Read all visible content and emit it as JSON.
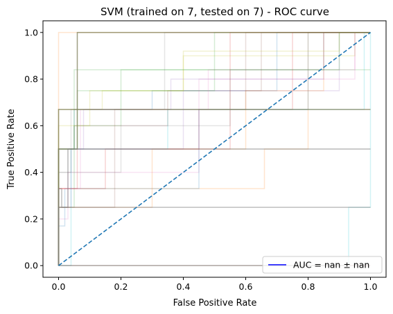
{
  "chart_data": {
    "type": "line",
    "title": "SVM (trained on 7, tested on 7) -  ROC curve",
    "xlabel": "False Positive Rate",
    "ylabel": "True Positive Rate",
    "xlim": [
      -0.05,
      1.05
    ],
    "ylim": [
      -0.05,
      1.05
    ],
    "xticks": [
      "0.0",
      "0.2",
      "0.4",
      "0.6",
      "0.8",
      "1.0"
    ],
    "yticks": [
      "0.0",
      "0.2",
      "0.4",
      "0.6",
      "0.8",
      "1.0"
    ],
    "grid": false,
    "legend": {
      "location": "lower-right",
      "entries": [
        {
          "label": "AUC = nan ± nan",
          "color": "#0000ff"
        }
      ]
    },
    "diagonal": {
      "x": [
        0,
        1
      ],
      "y": [
        0,
        1
      ],
      "color": "#1f77b4",
      "style": "dashed"
    },
    "fold_curves_opacity": 0.2,
    "fold_curves": [
      {
        "color": "#1f77b4",
        "x": [
          0,
          0,
          0.05,
          0.05,
          0.3,
          0.3,
          0.7,
          0.7,
          1
        ],
        "y": [
          0,
          0.5,
          0.5,
          0.67,
          0.67,
          0.75,
          0.75,
          1,
          1
        ]
      },
      {
        "color": "#ff7f0e",
        "x": [
          0,
          0,
          0.66,
          0.66,
          0.8,
          0.8,
          1
        ],
        "y": [
          0,
          0.33,
          0.33,
          0.5,
          0.5,
          1,
          1
        ]
      },
      {
        "color": "#2ca02c",
        "x": [
          0,
          0,
          0.05,
          0.05,
          0.2,
          0.2,
          1
        ],
        "y": [
          0,
          0.25,
          0.25,
          0.6,
          0.6,
          0.84,
          0.84
        ]
      },
      {
        "color": "#d62728",
        "x": [
          0,
          0,
          0.15,
          0.15,
          0.45,
          0.45,
          0.75,
          0.75,
          1
        ],
        "y": [
          0,
          0.33,
          0.33,
          0.5,
          0.5,
          0.67,
          0.67,
          1,
          1
        ]
      },
      {
        "color": "#9467bd",
        "x": [
          0,
          0,
          0.04,
          0.04,
          0.4,
          0.4,
          0.9,
          0.9,
          1
        ],
        "y": [
          0,
          0.25,
          0.25,
          0.5,
          0.5,
          0.75,
          0.75,
          1,
          1
        ]
      },
      {
        "color": "#8c564b",
        "x": [
          0,
          0,
          0.05,
          0.05,
          0.35,
          0.35,
          0.65,
          0.65,
          1
        ],
        "y": [
          0,
          0.5,
          0.5,
          0.6,
          0.6,
          0.75,
          0.75,
          1,
          1
        ]
      },
      {
        "color": "#e377c2",
        "x": [
          0,
          0,
          0.03,
          0.03,
          0.45,
          0.45,
          0.95,
          0.95,
          1
        ],
        "y": [
          0,
          0.2,
          0.2,
          0.4,
          0.4,
          0.8,
          0.8,
          1,
          1
        ]
      },
      {
        "color": "#7f7f7f",
        "x": [
          0,
          0,
          0.04,
          0.04,
          0.34,
          0.34,
          1
        ],
        "y": [
          0,
          0.4,
          0.4,
          0.67,
          0.67,
          1,
          1
        ]
      },
      {
        "color": "#bcbd22",
        "x": [
          0,
          0,
          0.14,
          0.14,
          0.4,
          0.4,
          0.95,
          0.95,
          1
        ],
        "y": [
          0,
          0.67,
          0.67,
          0.75,
          0.75,
          0.9,
          0.9,
          1,
          1
        ]
      },
      {
        "color": "#17becf",
        "x": [
          0,
          0,
          0.93,
          0.93,
          1,
          1
        ],
        "y": [
          0,
          0.0,
          0,
          0.25,
          0.25,
          1
        ]
      },
      {
        "color": "#1f77b4",
        "x": [
          0,
          0,
          0.02,
          0.02,
          0.45,
          0.45,
          0.8,
          0.8,
          1
        ],
        "y": [
          0,
          0.17,
          0.17,
          0.33,
          0.33,
          0.67,
          0.67,
          1,
          1
        ]
      },
      {
        "color": "#ff7f0e",
        "x": [
          0,
          0,
          0.3,
          0.3,
          0.6,
          0.6,
          0.85,
          0.85,
          1
        ],
        "y": [
          0,
          0.25,
          0.25,
          0.5,
          0.5,
          0.75,
          0.75,
          1,
          1
        ]
      },
      {
        "color": "#2ca02c",
        "x": [
          0,
          0,
          0.06,
          0.06,
          0.5,
          0.5,
          1
        ],
        "y": [
          0,
          0.5,
          0.5,
          0.75,
          0.75,
          1,
          1
        ]
      },
      {
        "color": "#d62728",
        "x": [
          0,
          0,
          0.06,
          0.06,
          0.55,
          0.55,
          1
        ],
        "y": [
          0,
          0.33,
          0.33,
          0.5,
          0.5,
          1,
          1
        ]
      },
      {
        "color": "#9467bd",
        "x": [
          0,
          0,
          0.08,
          0.08,
          0.36,
          0.36,
          0.85,
          0.85,
          1
        ],
        "y": [
          0,
          0.5,
          0.5,
          0.67,
          0.67,
          0.8,
          0.8,
          1,
          1
        ]
      },
      {
        "color": "#8c564b",
        "x": [
          0,
          0,
          0.18,
          0.18,
          0.6,
          0.6,
          1
        ],
        "y": [
          0,
          0.25,
          0.25,
          0.67,
          0.67,
          1,
          1
        ]
      },
      {
        "color": "#e377c2",
        "x": [
          0,
          0,
          0.07,
          0.07,
          0.48,
          0.48,
          0.95,
          0.95,
          1
        ],
        "y": [
          0,
          0.33,
          0.33,
          0.67,
          0.67,
          0.84,
          0.84,
          1,
          1
        ]
      },
      {
        "color": "#7f7f7f",
        "x": [
          0,
          0,
          0.2,
          0.2,
          0.55,
          0.55,
          0.85,
          0.85,
          1
        ],
        "y": [
          0,
          0.4,
          0.4,
          0.6,
          0.6,
          0.84,
          0.84,
          1,
          1
        ]
      },
      {
        "color": "#bcbd22",
        "x": [
          0,
          0,
          0.1,
          0.1,
          0.4,
          0.4,
          0.9,
          0.9,
          1
        ],
        "y": [
          0,
          0.6,
          0.6,
          0.75,
          0.75,
          0.92,
          0.92,
          1,
          1
        ]
      },
      {
        "color": "#17becf",
        "x": [
          0,
          0,
          0.04,
          0.04,
          0.35,
          0.35,
          0.98,
          0.98,
          1
        ],
        "y": [
          0,
          0.0,
          0.0,
          0.5,
          0.5,
          0.67,
          0.67,
          1,
          1
        ]
      },
      {
        "color": "#ff7f0e",
        "x": [
          0,
          0,
          0.0,
          0.0,
          0.05,
          0.05,
          1
        ],
        "y": [
          0,
          0.5,
          0.5,
          1,
          1,
          1,
          1
        ]
      },
      {
        "color": "#2ca02c",
        "x": [
          0,
          0,
          0.05,
          0.05,
          0.2,
          0.2,
          0.9,
          0.9,
          1
        ],
        "y": [
          0,
          0.5,
          0.5,
          0.84,
          0.84,
          0.84,
          0.84,
          1,
          1
        ]
      }
    ],
    "main_curves": [
      {
        "color": "#7f7f5a",
        "opacity": 0.75,
        "x": [
          0,
          0,
          0.06,
          0.06,
          1
        ],
        "y": [
          0,
          0.5,
          0.5,
          1,
          1
        ]
      },
      {
        "color": "#7f7f5a",
        "opacity": 0.75,
        "x": [
          0,
          0,
          0.0,
          0.0,
          1
        ],
        "y": [
          0,
          0.33,
          0.33,
          0.67,
          0.67
        ]
      },
      {
        "color": "#7f7f7f",
        "opacity": 0.55,
        "x": [
          0,
          0,
          0.03,
          0.03,
          1
        ],
        "y": [
          0,
          0.25,
          0.25,
          0.5,
          0.5
        ]
      },
      {
        "color": "#7f7f7f",
        "opacity": 0.5,
        "x": [
          0,
          0,
          0.0,
          0.0,
          0.01,
          0.01,
          1
        ],
        "y": [
          0,
          0.25,
          0.25,
          0.33,
          0.33,
          0.25,
          0.25
        ]
      },
      {
        "color": "#8c564b",
        "opacity": 0.5,
        "x": [
          0,
          0,
          0.04,
          0.04,
          0.14,
          0.14,
          1
        ],
        "y": [
          0,
          0.0,
          0.0,
          0.0,
          0.0,
          0.0,
          0
        ]
      }
    ]
  }
}
